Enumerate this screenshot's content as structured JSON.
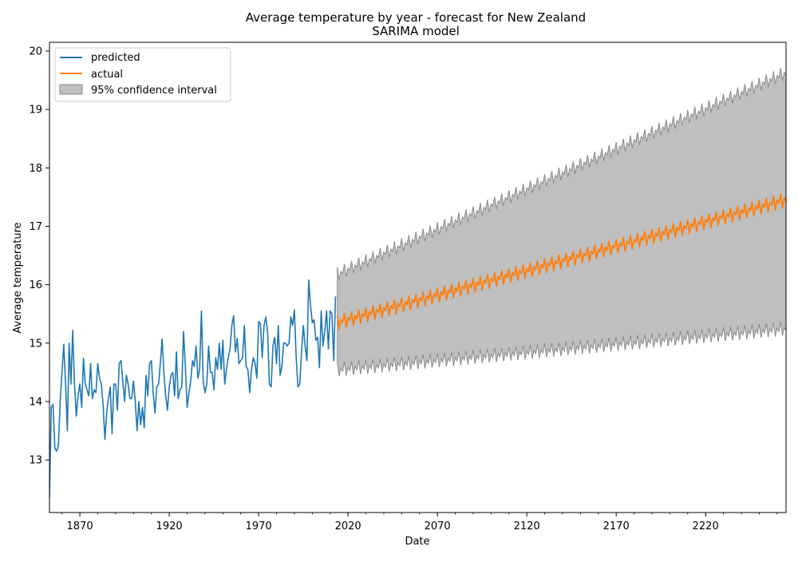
{
  "chart_data": {
    "type": "line",
    "title": "Average temperature by year - forecast for New Zealand",
    "subtitle": "SARIMA model",
    "xlabel": "Date",
    "ylabel": "Average temperature",
    "xlim": [
      1853,
      2265
    ],
    "ylim": [
      12.1,
      20.15
    ],
    "xticks": [
      {
        "value": 1870,
        "label": "1870"
      },
      {
        "value": 1920,
        "label": "1920"
      },
      {
        "value": 1970,
        "label": "1970"
      },
      {
        "value": 2020,
        "label": "2020"
      },
      {
        "value": 2070,
        "label": "2070"
      },
      {
        "value": 2120,
        "label": "2120"
      },
      {
        "value": 2170,
        "label": "2170"
      },
      {
        "value": 2220,
        "label": "2220"
      }
    ],
    "yticks": [
      {
        "value": 13,
        "label": "13"
      },
      {
        "value": 14,
        "label": "14"
      },
      {
        "value": 15,
        "label": "15"
      },
      {
        "value": 16,
        "label": "16"
      },
      {
        "value": 17,
        "label": "17"
      },
      {
        "value": 18,
        "label": "18"
      },
      {
        "value": 19,
        "label": "19"
      },
      {
        "value": 20,
        "label": "20"
      }
    ],
    "grid": false,
    "legend": {
      "placement": "top-left",
      "entries": [
        {
          "label": "predicted",
          "kind": "line",
          "color": "#1f77b4"
        },
        {
          "label": "actual",
          "kind": "line",
          "color": "#ff7f0e"
        },
        {
          "label": "95% confidence interval",
          "kind": "patch",
          "color": "#bfbfbf"
        }
      ]
    },
    "series": [
      {
        "name": "predicted",
        "color": "#1f77b4",
        "x": [
          1853,
          1854,
          1855,
          1856,
          1857,
          1858,
          1859,
          1860,
          1861,
          1862,
          1863,
          1864,
          1865,
          1866,
          1867,
          1868,
          1869,
          1870,
          1871,
          1872,
          1873,
          1874,
          1875,
          1876,
          1877,
          1878,
          1879,
          1880,
          1881,
          1882,
          1883,
          1884,
          1885,
          1886,
          1887,
          1888,
          1889,
          1890,
          1891,
          1892,
          1893,
          1894,
          1895,
          1896,
          1897,
          1898,
          1899,
          1900,
          1901,
          1902,
          1903,
          1904,
          1905,
          1906,
          1907,
          1908,
          1909,
          1910,
          1911,
          1912,
          1913,
          1914,
          1915,
          1916,
          1917,
          1918,
          1919,
          1920,
          1921,
          1922,
          1923,
          1924,
          1925,
          1926,
          1927,
          1928,
          1929,
          1930,
          1931,
          1932,
          1933,
          1934,
          1935,
          1936,
          1937,
          1938,
          1939,
          1940,
          1941,
          1942,
          1943,
          1944,
          1945,
          1946,
          1947,
          1948,
          1949,
          1950,
          1951,
          1952,
          1953,
          1954,
          1955,
          1956,
          1957,
          1958,
          1959,
          1960,
          1961,
          1962,
          1963,
          1964,
          1965,
          1966,
          1967,
          1968,
          1969,
          1970,
          1971,
          1972,
          1973,
          1974,
          1975,
          1976,
          1977,
          1978,
          1979,
          1980,
          1981,
          1982,
          1983,
          1984,
          1985,
          1986,
          1987,
          1988,
          1989,
          1990,
          1991,
          1992,
          1993,
          1994,
          1995,
          1996,
          1997,
          1998,
          1999,
          2000,
          2001,
          2002,
          2003,
          2004,
          2005,
          2006,
          2007,
          2008,
          2009,
          2010,
          2011,
          2012,
          2013
        ],
        "values": [
          12.35,
          13.9,
          13.95,
          13.2,
          13.15,
          13.25,
          14.0,
          14.5,
          14.98,
          14.3,
          13.5,
          15.0,
          14.3,
          15.22,
          14.3,
          13.75,
          14.1,
          14.3,
          13.9,
          14.74,
          14.3,
          14.2,
          14.1,
          14.65,
          14.05,
          14.2,
          14.15,
          14.65,
          14.4,
          14.3,
          13.95,
          13.35,
          13.8,
          14.05,
          14.25,
          13.45,
          14.3,
          14.3,
          13.85,
          14.65,
          14.7,
          14.35,
          14.0,
          14.45,
          14.3,
          14.05,
          14.05,
          14.35,
          14.0,
          13.5,
          14.0,
          13.6,
          13.9,
          13.55,
          14.45,
          14.1,
          14.65,
          14.7,
          14.15,
          13.8,
          14.25,
          14.3,
          14.65,
          15.07,
          14.5,
          14.1,
          13.85,
          14.25,
          14.45,
          14.5,
          14.1,
          14.85,
          14.05,
          14.2,
          14.25,
          15.2,
          14.6,
          13.9,
          14.15,
          14.35,
          14.7,
          14.6,
          14.95,
          14.4,
          14.55,
          15.55,
          14.35,
          14.15,
          14.3,
          14.95,
          14.5,
          14.5,
          14.2,
          14.75,
          14.55,
          15.0,
          14.55,
          15.05,
          14.3,
          14.55,
          14.75,
          14.9,
          15.3,
          15.47,
          14.85,
          15.08,
          14.65,
          14.7,
          14.75,
          15.3,
          14.6,
          14.55,
          14.15,
          14.55,
          14.75,
          14.65,
          14.4,
          15.37,
          15.33,
          14.75,
          15.3,
          15.45,
          15.2,
          14.3,
          14.25,
          14.95,
          15.1,
          14.65,
          15.3,
          14.45,
          14.6,
          15.0,
          15.0,
          14.95,
          15.0,
          15.45,
          15.3,
          15.57,
          14.75,
          14.25,
          14.3,
          14.85,
          15.3,
          14.95,
          14.7,
          16.08,
          15.65,
          15.35,
          15.4,
          15.05,
          15.1,
          14.58,
          15.55,
          14.95,
          15.2,
          15.55,
          14.9,
          15.55,
          15.5,
          14.7,
          15.8
        ]
      },
      {
        "name": "actual",
        "color": "#ff7f0e",
        "forecast": {
          "start": 2014,
          "end": 2265,
          "start_value": 15.35,
          "end_value": 17.45,
          "season_amplitude": 0.12,
          "season_period": 4
        }
      }
    ],
    "confidence_interval": {
      "color": "#bfbfbf",
      "edge_color": "#8c8c8c",
      "start": 2014,
      "end": 2265,
      "upper_start": 16.15,
      "upper_end": 19.6,
      "lower_start": 14.55,
      "lower_end": 15.25
    }
  }
}
